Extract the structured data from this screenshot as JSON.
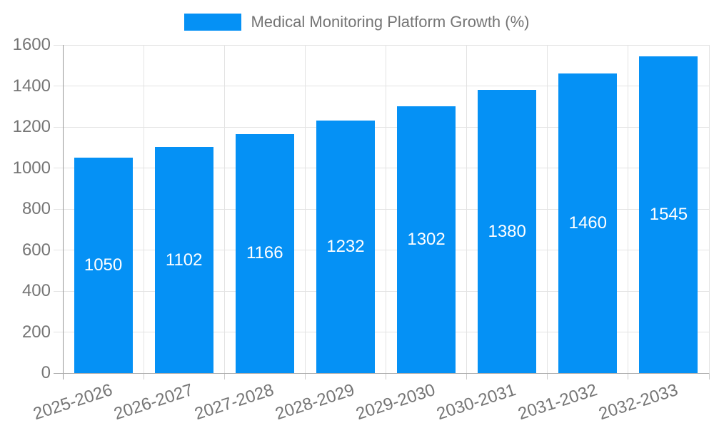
{
  "legend": {
    "label": "Medical Monitoring Platform Growth (%)"
  },
  "chart_data": {
    "type": "bar",
    "title": "Medical Monitoring Platform Growth (%)",
    "categories": [
      "2025-2026",
      "2026-2027",
      "2027-2028",
      "2028-2029",
      "2029-2030",
      "2030-2031",
      "2031-2032",
      "2032-2033"
    ],
    "series": [
      {
        "name": "Medical Monitoring Platform Growth (%)",
        "values": [
          1050,
          1102,
          1166,
          1232,
          1302,
          1380,
          1460,
          1545
        ]
      }
    ],
    "values": [
      1050,
      1102,
      1166,
      1232,
      1302,
      1380,
      1460,
      1545
    ],
    "value_labels": [
      "1050",
      "1102",
      "1166",
      "1232",
      "1302",
      "1380",
      "1460",
      "1545"
    ],
    "ytick_labels": [
      "0",
      "200",
      "400",
      "600",
      "800",
      "1000",
      "1200",
      "1400",
      "1600"
    ],
    "ylim": [
      0,
      1600
    ],
    "ytick_step": 200,
    "grid": true,
    "legend_position": "top",
    "xlabel": "",
    "ylabel": "",
    "colors": {
      "bar": "#0591F5",
      "grid": "#E3E3E3",
      "axis": "#999999",
      "baseline": "#ADADAD",
      "tick": "#CCCCCC",
      "text": "#757575",
      "value_label": "#FFFFFF"
    }
  }
}
